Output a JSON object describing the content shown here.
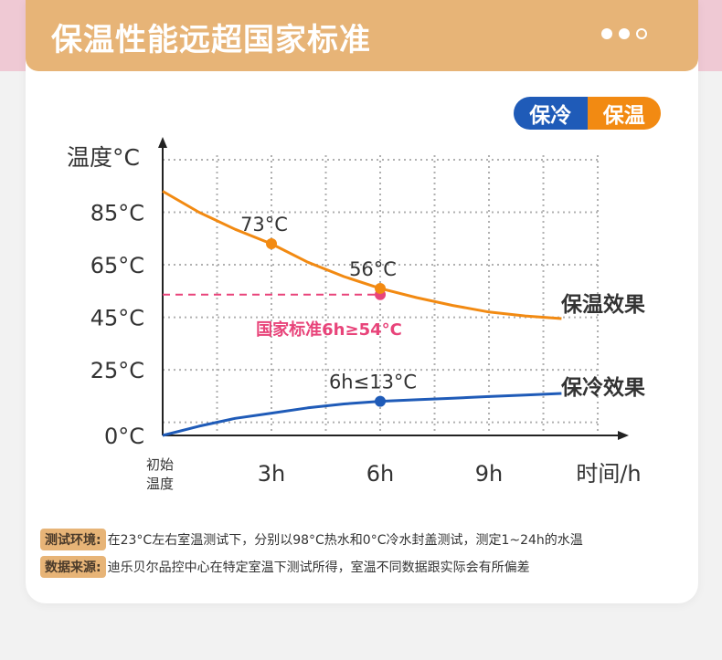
{
  "header": {
    "title": "保温性能远超国家标准",
    "page_dots": [
      "active",
      "active",
      "inactive"
    ]
  },
  "toggle": {
    "cold_label": "保冷",
    "warm_label": "保温"
  },
  "colors": {
    "header_bg": "#e7b477",
    "warm": "#f28a12",
    "cold": "#1f5bb8",
    "standard": "#e8447a"
  },
  "chart_data": {
    "type": "line",
    "ylabel": "温度°C",
    "xlabel": "时间/h",
    "x_origin_label": [
      "初始",
      "温度"
    ],
    "x_ticks": [
      {
        "x": 3,
        "label": "3h"
      },
      {
        "x": 6,
        "label": "6h"
      },
      {
        "x": 9,
        "label": "9h"
      }
    ],
    "y_ticks": [
      {
        "y": 0,
        "label": "0°C"
      },
      {
        "y": 25,
        "label": "25°C"
      },
      {
        "y": 45,
        "label": "45°C"
      },
      {
        "y": 65,
        "label": "65°C"
      },
      {
        "y": 85,
        "label": "85°C"
      }
    ],
    "xlim": [
      0,
      12
    ],
    "ylim": [
      0,
      105
    ],
    "grid": true,
    "series": [
      {
        "name": "保温效果",
        "color": "#f28a12",
        "x": [
          0,
          1,
          2,
          3,
          4,
          5,
          6,
          7,
          8,
          9,
          10,
          11
        ],
        "y": [
          93,
          85,
          78.5,
          73,
          66,
          60.5,
          56,
          52.5,
          49.5,
          47,
          45.5,
          44.5
        ],
        "markers": [
          {
            "x": 3,
            "y": 73,
            "label": "73°C"
          },
          {
            "x": 6,
            "y": 56,
            "label": "56°C"
          }
        ]
      },
      {
        "name": "保冷效果",
        "color": "#1f5bb8",
        "x": [
          0,
          1,
          2,
          3,
          4,
          5,
          6,
          7,
          8,
          9,
          10,
          11
        ],
        "y": [
          0,
          3.5,
          6.5,
          8.5,
          10.5,
          12,
          13,
          13.6,
          14.2,
          14.8,
          15.4,
          16
        ],
        "markers": [
          {
            "x": 6,
            "y": 13,
            "label": "6h≤13°C"
          }
        ]
      }
    ],
    "reference": {
      "y": 54,
      "x_end": 6,
      "label": "国家标准6h≥54°C",
      "color": "#e8447a"
    }
  },
  "footnotes": [
    {
      "tag": "测试环境:",
      "text": "在23°C左右室温测试下，分别以98°C热水和0°C冷水封盖测试，测定1~24h的水温"
    },
    {
      "tag": "数据来源:",
      "text": "迪乐贝尔品控中心在特定室温下测试所得，室温不同数据跟实际会有所偏差"
    }
  ]
}
